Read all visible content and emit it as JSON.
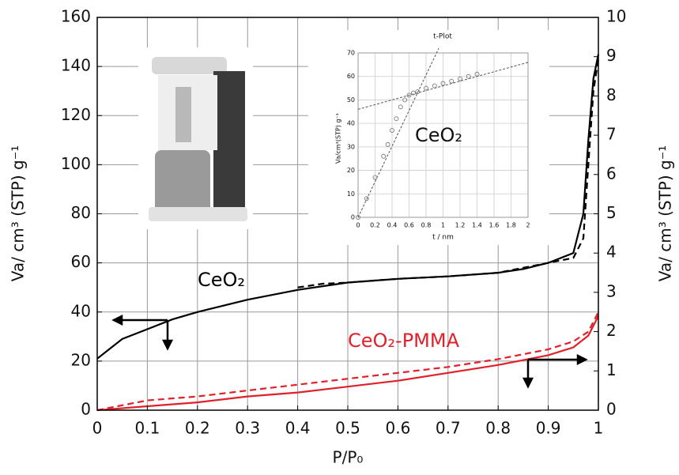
{
  "chart_data": [
    {
      "type": "line",
      "xlabel": "P/P₀",
      "ylabel": "Va/ cm³ (STP) g⁻¹",
      "y2label": "Va/ cm³ (STP) g⁻¹",
      "annotations": [
        {
          "text": "CeO₂",
          "color": "#000000"
        },
        {
          "text": "CeO₂-PMMA",
          "color": "#e0202a"
        }
      ],
      "xlim": [
        0,
        1
      ],
      "xticks": [
        0,
        0.1,
        0.2,
        0.3,
        0.4,
        0.5,
        0.6,
        0.7,
        0.8,
        0.9,
        1
      ],
      "ylim": [
        0,
        160
      ],
      "yticks": [
        0,
        20,
        40,
        60,
        80,
        100,
        120,
        140,
        160
      ],
      "y2lim": [
        0,
        10
      ],
      "y2ticks": [
        0,
        1,
        2,
        3,
        4,
        5,
        6,
        7,
        8,
        9,
        10
      ],
      "grid": true,
      "series": [
        {
          "color": "#000000",
          "dash": false,
          "x": [
            0,
            0.05,
            0.1,
            0.15,
            0.2,
            0.3,
            0.4,
            0.5,
            0.6,
            0.7,
            0.8,
            0.85,
            0.9,
            0.95,
            0.97,
            0.98,
            0.99,
            1
          ],
          "values": [
            21,
            29,
            33,
            37,
            40,
            45,
            49,
            52,
            53.5,
            54.5,
            56,
            57.5,
            60,
            64,
            80,
            110,
            135,
            145
          ]
        },
        {
          "color": "#000000",
          "dash": true,
          "x": [
            0.4,
            0.45,
            0.5,
            0.6,
            0.7,
            0.8,
            0.9,
            0.95,
            0.97,
            0.98,
            0.99,
            1
          ],
          "values": [
            50,
            51.5,
            52,
            53.5,
            54.5,
            56,
            60,
            62,
            70,
            100,
            130,
            143
          ]
        },
        {
          "color": "#e0202a",
          "dash": false,
          "axis": "y2",
          "x": [
            0,
            0.1,
            0.2,
            0.3,
            0.4,
            0.5,
            0.6,
            0.7,
            0.8,
            0.9,
            0.95,
            0.98,
            1
          ],
          "values": [
            0,
            0.1,
            0.2,
            0.35,
            0.45,
            0.6,
            0.75,
            0.95,
            1.15,
            1.4,
            1.6,
            1.9,
            2.4
          ]
        },
        {
          "color": "#e0202a",
          "dash": true,
          "axis": "y2",
          "x": [
            0,
            0.1,
            0.2,
            0.3,
            0.4,
            0.5,
            0.6,
            0.7,
            0.8,
            0.9,
            0.95,
            0.98,
            1
          ],
          "values": [
            0,
            0.25,
            0.35,
            0.5,
            0.65,
            0.8,
            0.95,
            1.1,
            1.3,
            1.55,
            1.75,
            2.0,
            2.5
          ]
        }
      ]
    },
    {
      "type": "scatter",
      "title": "t-Plot",
      "xlabel": "t / nm",
      "ylabel": "Va/cm³(STP) g⁻¹",
      "annotation": "CeO₂",
      "xlim": [
        0,
        2
      ],
      "xticks": [
        0,
        0.2,
        0.4,
        0.6,
        0.8,
        1,
        1.2,
        1.4,
        1.6,
        1.8,
        2
      ],
      "ylim": [
        0,
        70
      ],
      "yticks": [
        0,
        10,
        20,
        30,
        40,
        50,
        60,
        70
      ],
      "grid": true,
      "series": [
        {
          "color": "#777777",
          "x": [
            0,
            0.1,
            0.2,
            0.3,
            0.35,
            0.4,
            0.45,
            0.5,
            0.55,
            0.6,
            0.65,
            0.7,
            0.8,
            0.9,
            1,
            1.1,
            1.2,
            1.3,
            1.4
          ],
          "values": [
            0,
            8,
            17,
            26,
            31,
            37,
            42,
            47,
            50,
            52,
            53,
            53.5,
            55,
            56,
            57,
            58,
            59,
            60,
            61
          ]
        }
      ],
      "fit_lines": [
        {
          "x": [
            0,
            0.95
          ],
          "values": [
            0,
            72
          ]
        },
        {
          "x": [
            0,
            2
          ],
          "values": [
            46,
            66
          ]
        }
      ]
    }
  ]
}
